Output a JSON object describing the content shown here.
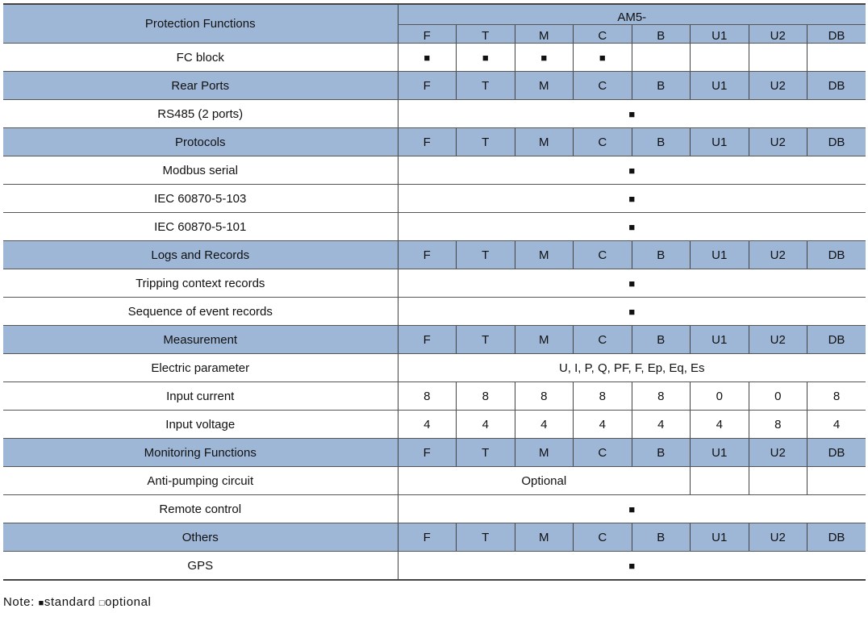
{
  "header": {
    "title": "Protection Functions",
    "group": "AM5-"
  },
  "columns": [
    "F",
    "T",
    "M",
    "C",
    "B",
    "U1",
    "U2",
    "DB"
  ],
  "rows": [
    {
      "type": "cells",
      "label": "FC block",
      "values": [
        "■",
        "■",
        "■",
        "■",
        "",
        "",
        "",
        ""
      ]
    },
    {
      "type": "section",
      "label": "Rear Ports"
    },
    {
      "type": "span",
      "label": "RS485 (2 ports)",
      "value": "■"
    },
    {
      "type": "section",
      "label": "Protocols"
    },
    {
      "type": "span",
      "label": "Modbus serial",
      "value": "■"
    },
    {
      "type": "span",
      "label": "IEC 60870-5-103",
      "value": "■"
    },
    {
      "type": "span",
      "label": "IEC 60870-5-101",
      "value": "■"
    },
    {
      "type": "section",
      "label": "Logs and Records"
    },
    {
      "type": "span",
      "label": "Tripping context records",
      "value": "■"
    },
    {
      "type": "span",
      "label": "Sequence of event records",
      "value": "■"
    },
    {
      "type": "section",
      "label": "Measurement"
    },
    {
      "type": "span",
      "label": "Electric parameter",
      "value": "U, I, P, Q, PF, F, Ep, Eq, Es"
    },
    {
      "type": "cells",
      "label": "Input current",
      "values": [
        "8",
        "8",
        "8",
        "8",
        "8",
        "0",
        "0",
        "8"
      ]
    },
    {
      "type": "cells",
      "label": "Input voltage",
      "values": [
        "4",
        "4",
        "4",
        "4",
        "4",
        "4",
        "8",
        "4"
      ]
    },
    {
      "type": "section",
      "label": "Monitoring Functions"
    },
    {
      "type": "partial",
      "label": "Anti-pumping circuit",
      "value": "Optional",
      "values": [
        "",
        "",
        ""
      ]
    },
    {
      "type": "span",
      "label": "Remote control",
      "value": "■"
    },
    {
      "type": "section",
      "label": "Others"
    },
    {
      "type": "span",
      "label": "GPS",
      "value": "■"
    }
  ],
  "note": {
    "label": "Note:",
    "standard_symbol": "■",
    "standard": "standard",
    "optional_symbol": "□",
    "optional": "optional"
  },
  "colors": {
    "header_bg": "#9fb7d7"
  }
}
